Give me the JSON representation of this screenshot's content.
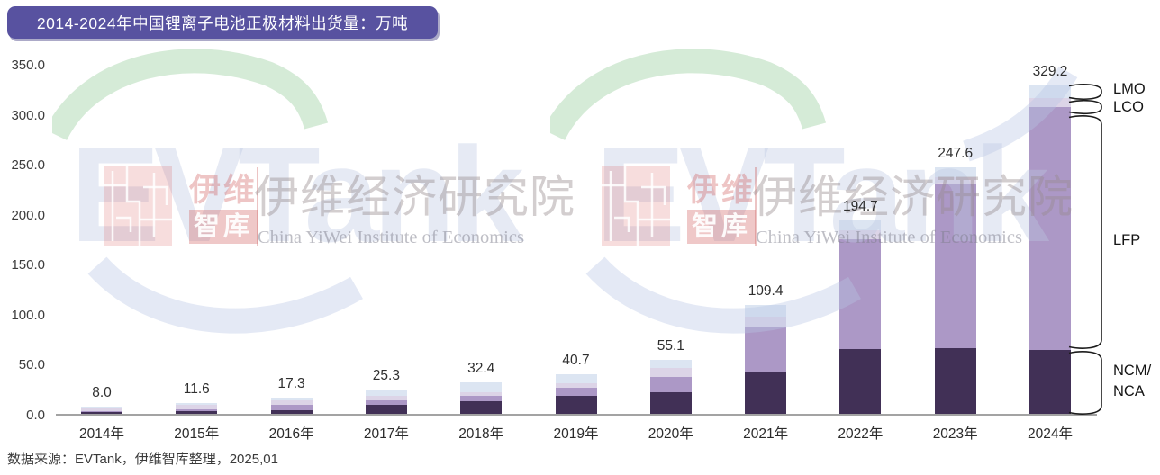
{
  "title": "2014-2024年中国锂离子电池正极材料出货量：万吨",
  "source": "数据来源：EVTank，伊维智库整理，2025,01",
  "colors": {
    "title_bg": "#5852a0",
    "title_shadow": "#474284",
    "title_text": "#ffffff",
    "baseline": "#a3a3a3",
    "axis_text": "#3c3c3c",
    "bracket_stroke": "#1c1c1c",
    "ncm_nca": "#413056",
    "lfp": "#ac98c6",
    "lco": "#dcd4e7",
    "lmo": "#dce5f2"
  },
  "y_axis": {
    "min": 0,
    "max": 350,
    "step": 50,
    "tick_labels": [
      "0.0",
      "50.0",
      "100.0",
      "150.0",
      "200.0",
      "250.0",
      "300.0",
      "350.0"
    ]
  },
  "chart_data": {
    "type": "bar",
    "stacked": true,
    "title": "2014-2024年中国锂离子电池正极材料出货量：万吨",
    "ylabel": "万吨",
    "ylim": [
      0,
      350
    ],
    "grid": false,
    "legend_position": "right-brackets",
    "categories": [
      "2014年",
      "2015年",
      "2016年",
      "2017年",
      "2018年",
      "2019年",
      "2020年",
      "2021年",
      "2022年",
      "2023年",
      "2024年"
    ],
    "totals": [
      8.0,
      11.6,
      17.3,
      25.3,
      32.4,
      40.7,
      55.1,
      109.4,
      194.7,
      247.6,
      329.2
    ],
    "total_labels": [
      "8.0",
      "11.6",
      "17.3",
      "25.3",
      "32.4",
      "40.7",
      "55.1",
      "109.4",
      "194.7",
      "247.6",
      "329.2"
    ],
    "series": [
      {
        "name": "NCM/NCA",
        "color": "#413056",
        "values": [
          2.4,
          3.6,
          4.5,
          10.0,
          13.7,
          19.2,
          22.6,
          42.2,
          65.5,
          66.5,
          64.5
        ]
      },
      {
        "name": "LFP",
        "color": "#ac98c6",
        "values": [
          0.9,
          1.5,
          5.0,
          4.0,
          5.6,
          7.8,
          15.3,
          45.5,
          110.2,
          163.6,
          243.0
        ]
      },
      {
        "name": "LCO",
        "color": "#dcd4e7",
        "values": [
          3.7,
          4.5,
          4.8,
          4.8,
          3.6,
          4.4,
          8.6,
          10.5,
          9.0,
          7.5,
          9.0
        ]
      },
      {
        "name": "LMO",
        "color": "#dce5f2",
        "values": [
          1.0,
          2.0,
          3.0,
          6.5,
          9.5,
          9.3,
          8.6,
          11.2,
          10.0,
          10.0,
          12.7
        ]
      }
    ]
  },
  "right_labels": {
    "lmo": "LMO",
    "lco": "LCO",
    "lfp": "LFP",
    "ncm_line1": "NCM/",
    "ncm_line2": "NCA"
  },
  "watermark": {
    "brand": "EVTank",
    "logo_cn_top": "伊维",
    "logo_cn_bottom": "智库",
    "institute_cn": "伊维经济研究院",
    "institute_en": "China YiWei Institute of Economics"
  }
}
